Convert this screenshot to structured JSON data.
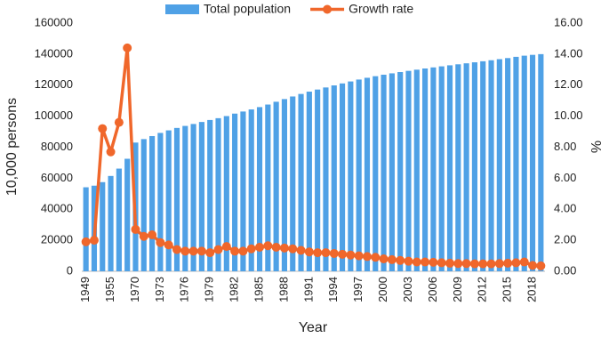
{
  "chart_data": {
    "type": "bar-line",
    "y_label": "10,000 persons",
    "y2_label": "%",
    "x_label": "Year",
    "categories": [
      "1949",
      null,
      null,
      "1955",
      null,
      null,
      "1970",
      null,
      null,
      "1973",
      null,
      null,
      "1976",
      null,
      null,
      "1979",
      null,
      null,
      "1982",
      null,
      null,
      "1985",
      null,
      null,
      "1988",
      null,
      null,
      "1991",
      null,
      null,
      "1994",
      null,
      null,
      "1997",
      null,
      null,
      "2000",
      null,
      null,
      "2003",
      null,
      null,
      "2006",
      null,
      null,
      "2009",
      null,
      null,
      "2012",
      null,
      null,
      "2015",
      null,
      null,
      "2018",
      null
    ],
    "series": [
      {
        "name": "Total population",
        "type": "bar",
        "color": "#4fa1e6",
        "values": [
          54167,
          55196,
          57482,
          61465,
          66207,
          72538,
          82992,
          85229,
          87177,
          89211,
          90859,
          92420,
          93717,
          94974,
          96259,
          97542,
          98705,
          100072,
          101654,
          103008,
          104357,
          105851,
          107507,
          109300,
          111026,
          112704,
          114333,
          115823,
          117171,
          118517,
          119850,
          121121,
          122389,
          123626,
          124761,
          125786,
          126743,
          127627,
          128453,
          129227,
          129988,
          130756,
          131448,
          132129,
          132802,
          133450,
          134091,
          134735,
          135404,
          136072,
          136782,
          137462,
          138271,
          139008,
          139538,
          140005
        ]
      },
      {
        "name": "Growth rate",
        "type": "line",
        "axis": "y2",
        "color": "#f0672b",
        "values": [
          1.9,
          2.0,
          9.2,
          7.7,
          9.6,
          14.4,
          2.7,
          2.25,
          2.35,
          1.85,
          1.7,
          1.4,
          1.3,
          1.3,
          1.3,
          1.2,
          1.4,
          1.6,
          1.3,
          1.3,
          1.45,
          1.55,
          1.65,
          1.55,
          1.5,
          1.45,
          1.35,
          1.25,
          1.2,
          1.2,
          1.15,
          1.1,
          1.05,
          1.0,
          0.95,
          0.9,
          0.8,
          0.75,
          0.7,
          0.65,
          0.6,
          0.6,
          0.58,
          0.55,
          0.52,
          0.5,
          0.5,
          0.48,
          0.48,
          0.48,
          0.5,
          0.52,
          0.55,
          0.6,
          0.38,
          0.35
        ]
      }
    ],
    "ylim": [
      0,
      160000
    ],
    "yticks": [
      0,
      20000,
      40000,
      60000,
      80000,
      100000,
      120000,
      140000,
      160000
    ],
    "y2lim": [
      0,
      16
    ],
    "y2ticks": [
      {
        "value": 0,
        "label": "0.00"
      },
      {
        "value": 2,
        "label": "2.00"
      },
      {
        "value": 4,
        "label": "4.00"
      },
      {
        "value": 6,
        "label": "6.00"
      },
      {
        "value": 8,
        "label": "8.00"
      },
      {
        "value": 10,
        "label": "10.00"
      },
      {
        "value": 12,
        "label": "12.00"
      },
      {
        "value": 14,
        "label": "14.00"
      },
      {
        "value": 16,
        "label": "16.00"
      }
    ],
    "legend": "top",
    "grid": false
  }
}
